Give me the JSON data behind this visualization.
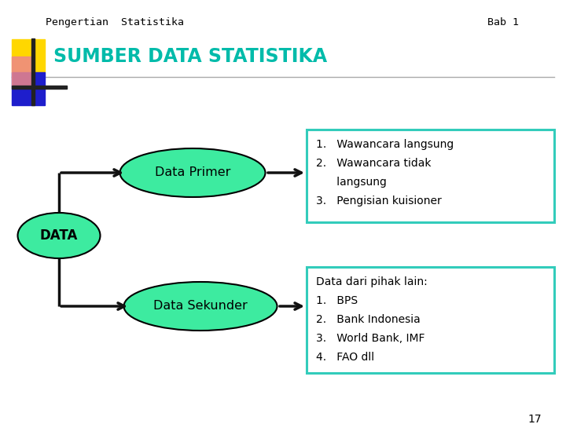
{
  "title_left": "Pengertian  Statistika",
  "title_right": "Bab 1",
  "heading": "SUMBER DATA STATISTIKA",
  "heading_color": "#00BBAA",
  "bg_color": "#FFFFFF",
  "data_ellipse_label": "DATA",
  "ellipse_color": "#3DEBA0",
  "primer_ellipse_label": "Data Primer",
  "sekunder_ellipse_label": "Data Sekunder",
  "primer_box_lines": [
    "1.   Wawancara langsung",
    "2.   Wawancara tidak",
    "      langsung",
    "3.   Pengisian kuisioner"
  ],
  "sekunder_box_lines": [
    "Data dari pihak lain:",
    "1.   BPS",
    "2.   Bank Indonesia",
    "3.   World Bank, IMF",
    "4.   FAO dll"
  ],
  "box_border_color": "#33CCBB",
  "page_number": "17",
  "line_color": "#111111",
  "sq_yellow": "#FFD700",
  "sq_blue": "#1E1ECC",
  "sq_red": "#DD3333",
  "sq_pink": "#EE8888"
}
